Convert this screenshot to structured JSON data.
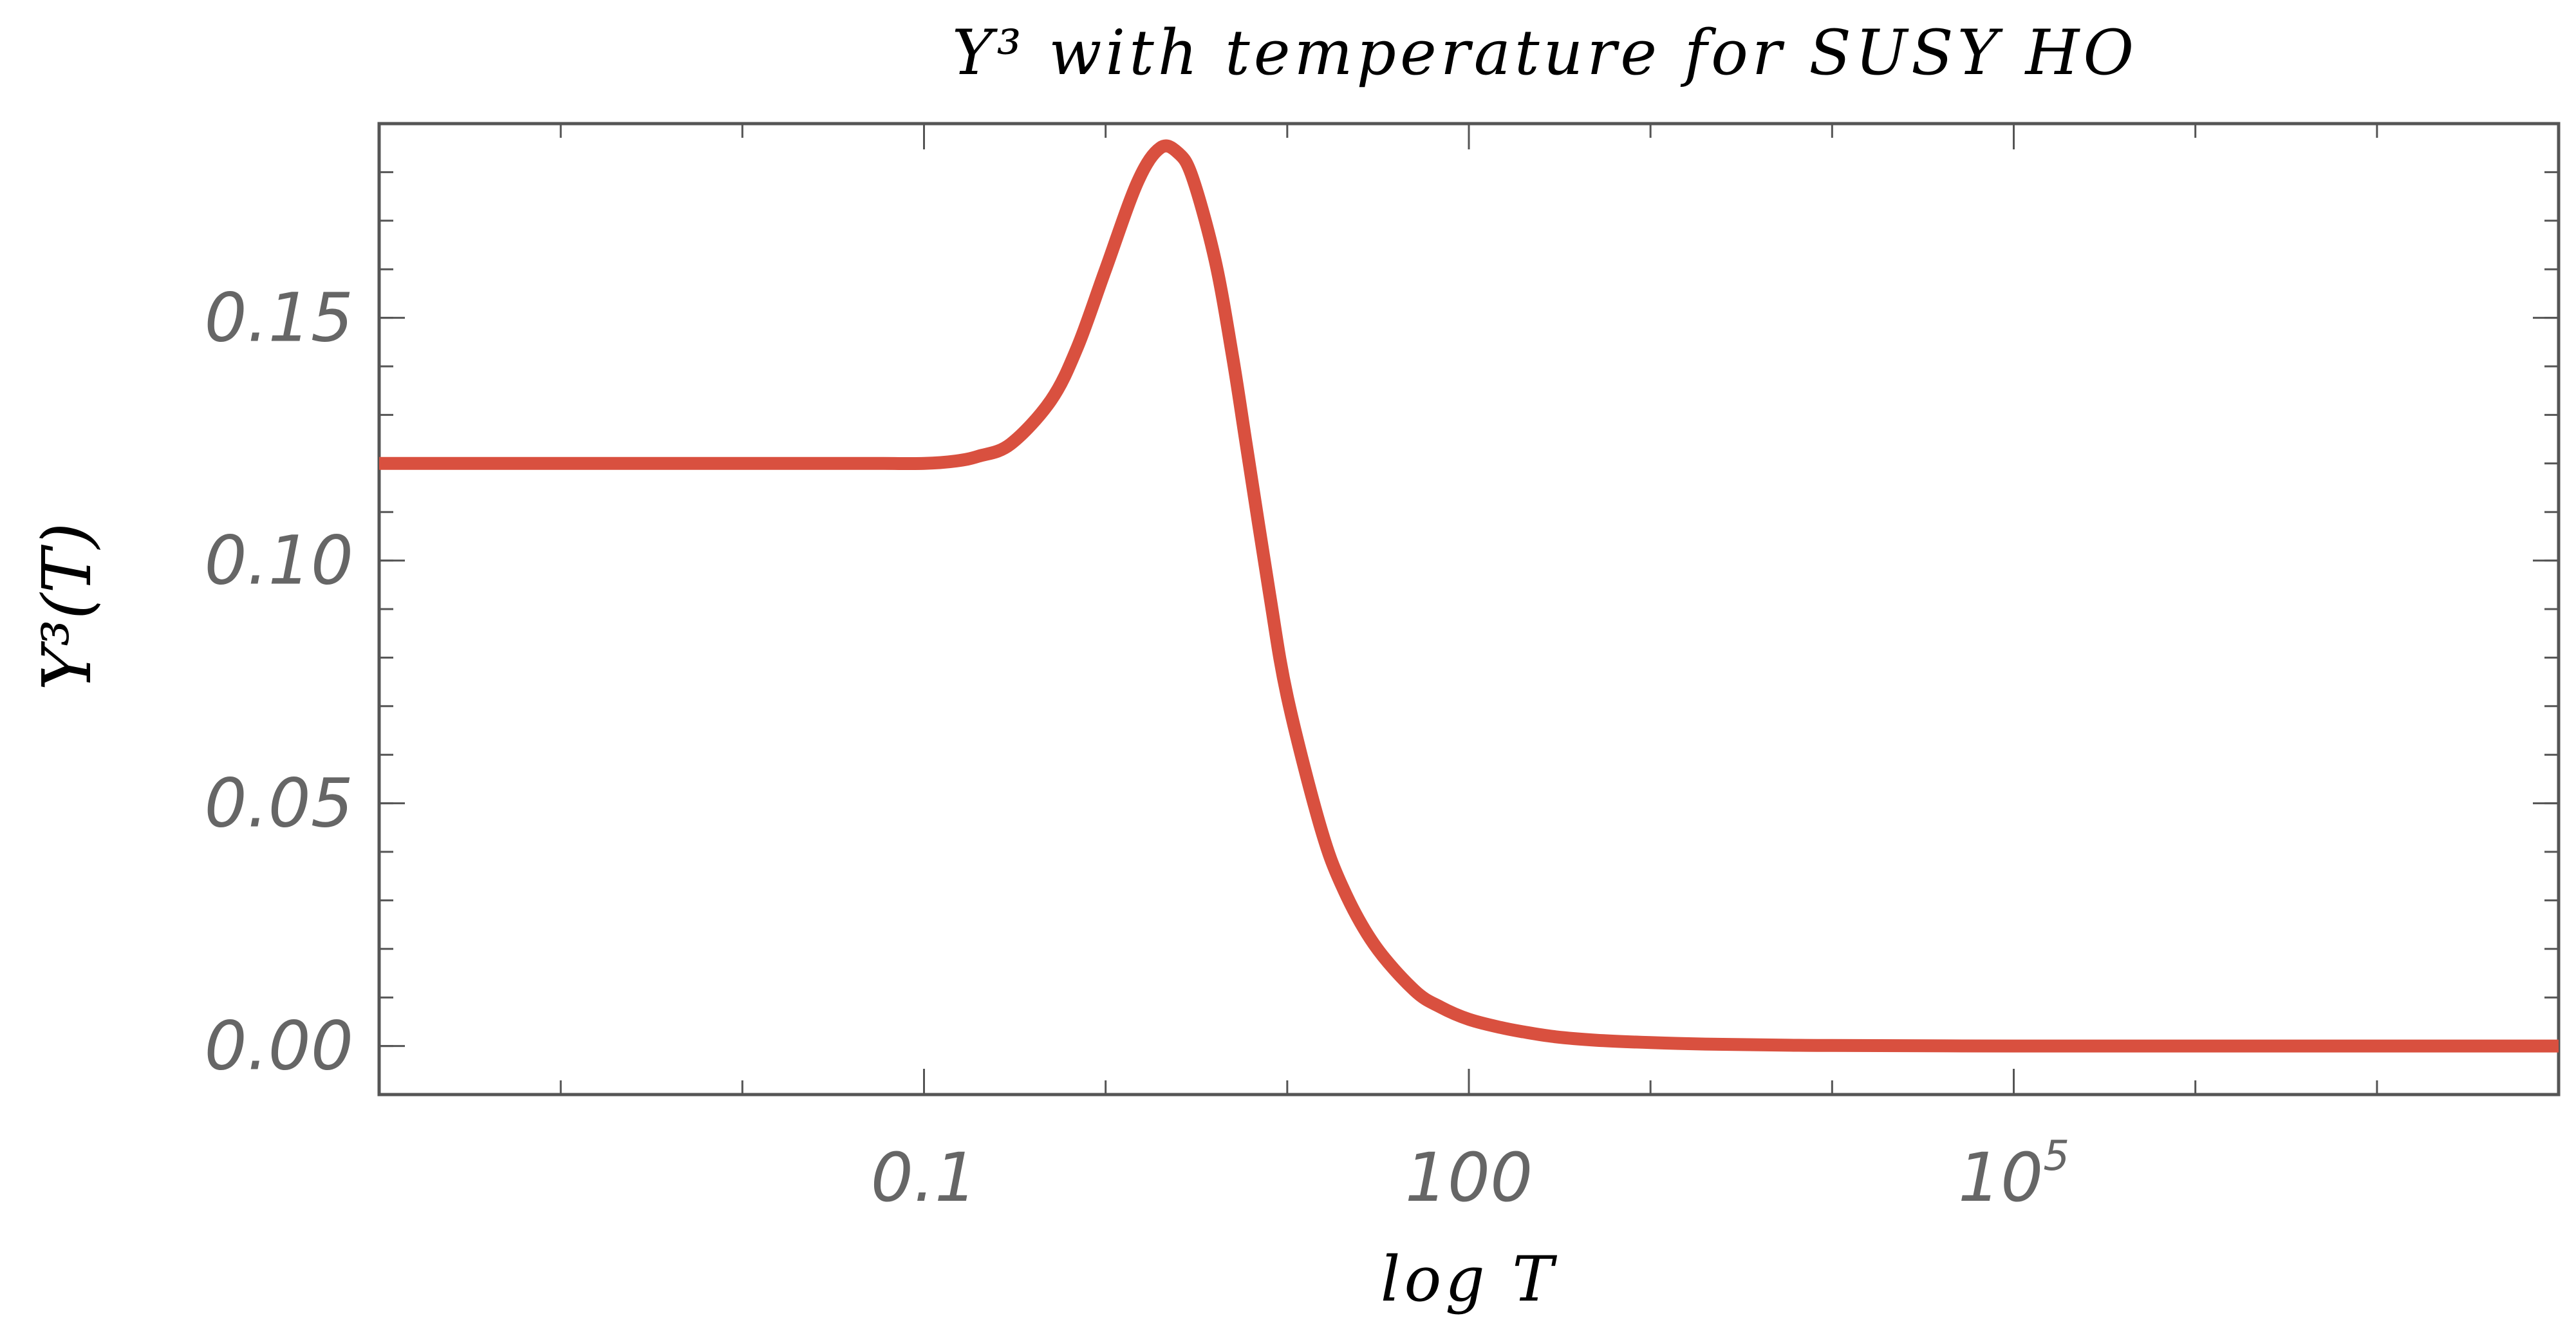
{
  "chart_data": {
    "type": "line",
    "title": "Y³ with temperature for SUSY HO",
    "xlabel": "log T",
    "ylabel": "Y³(T)",
    "x_scale": "log",
    "xlim": [
      0.0001,
      100000000
    ],
    "ylim": [
      -0.01,
      0.19
    ],
    "grid": false,
    "legend": "none",
    "x_ticks": [
      {
        "value": 0.1,
        "label": "0.1",
        "sup": ""
      },
      {
        "value": 100,
        "label": "100",
        "sup": ""
      },
      {
        "value": 100000,
        "label": "10",
        "sup": "5"
      }
    ],
    "y_ticks": [
      {
        "value": 0.0,
        "label": "0.00"
      },
      {
        "value": 0.05,
        "label": "0.05"
      },
      {
        "value": 0.1,
        "label": "0.10"
      },
      {
        "value": 0.15,
        "label": "0.15"
      }
    ],
    "series": [
      {
        "color": "#d9503f",
        "x": [
          0.0001,
          0.001,
          0.01,
          0.03,
          0.06,
          0.1,
          0.15,
          0.2,
          0.3,
          0.5,
          0.7,
          1.0,
          1.5,
          2.0,
          2.5,
          3.0,
          4.0,
          5.0,
          6.0,
          8.0,
          10,
          15,
          20,
          30,
          50,
          70,
          100,
          150,
          200,
          300,
          500,
          1000,
          2000,
          5000,
          10000,
          100000,
          1000000,
          10000000,
          100000000
        ],
        "y": [
          0.12,
          0.12,
          0.12,
          0.12,
          0.12,
          0.12,
          0.1205,
          0.1215,
          0.124,
          0.133,
          0.144,
          0.16,
          0.178,
          0.185,
          0.184,
          0.179,
          0.162,
          0.142,
          0.123,
          0.093,
          0.072,
          0.046,
          0.033,
          0.021,
          0.0115,
          0.008,
          0.0055,
          0.0038,
          0.0029,
          0.0019,
          0.0012,
          0.0007,
          0.0004,
          0.0002,
          0.0001,
          0.0,
          0.0,
          0.0,
          0.0
        ]
      }
    ]
  }
}
